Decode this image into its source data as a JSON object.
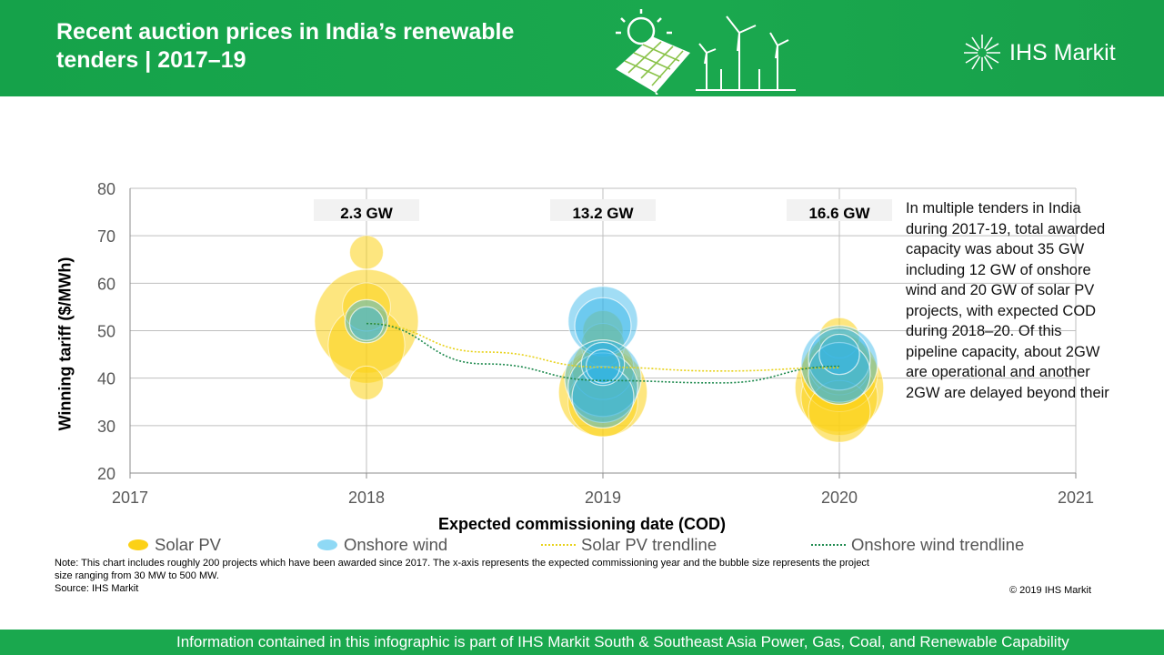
{
  "header": {
    "title_line1": "Recent auction prices in India’s renewable",
    "title_line2": "tenders | 2017–19",
    "brand": "IHS Markit",
    "colors": {
      "green": "#1aa84e",
      "white": "#ffffff"
    }
  },
  "chart_data": {
    "type": "scatter",
    "subtype": "bubble",
    "title": "",
    "xlabel": "Expected commissioning date (COD)",
    "ylabel": "Winning tariff ($/MWh)",
    "xlim": [
      2017,
      2021
    ],
    "ylim": [
      20,
      80
    ],
    "x_ticks": [
      "2017",
      "2018",
      "2019",
      "2020",
      "2021"
    ],
    "y_ticks": [
      "20",
      "30",
      "40",
      "50",
      "60",
      "70",
      "80"
    ],
    "grid": true,
    "capacity_labels": [
      {
        "x": 2018,
        "text": "2.3 GW"
      },
      {
        "x": 2019,
        "text": "13.2 GW"
      },
      {
        "x": 2020,
        "text": "16.6 GW"
      }
    ],
    "series": [
      {
        "name": "Solar PV",
        "color": "#fcd116",
        "points": [
          {
            "x": 2018,
            "y": 52,
            "size_mw": 500
          },
          {
            "x": 2018,
            "y": 47,
            "size_mw": 250
          },
          {
            "x": 2018,
            "y": 66.5,
            "size_mw": 30
          },
          {
            "x": 2018,
            "y": 39,
            "size_mw": 30
          },
          {
            "x": 2018,
            "y": 55,
            "size_mw": 80
          },
          {
            "x": 2019,
            "y": 37,
            "size_mw": 350
          },
          {
            "x": 2019,
            "y": 39,
            "size_mw": 200
          },
          {
            "x": 2019,
            "y": 35,
            "size_mw": 200
          },
          {
            "x": 2019,
            "y": 42,
            "size_mw": 150
          },
          {
            "x": 2019,
            "y": 50,
            "size_mw": 50
          },
          {
            "x": 2019,
            "y": 47,
            "size_mw": 60
          },
          {
            "x": 2020,
            "y": 38,
            "size_mw": 350
          },
          {
            "x": 2020,
            "y": 36,
            "size_mw": 250
          },
          {
            "x": 2020,
            "y": 41,
            "size_mw": 250
          },
          {
            "x": 2020,
            "y": 43,
            "size_mw": 150
          },
          {
            "x": 2020,
            "y": 48.5,
            "size_mw": 50
          },
          {
            "x": 2020,
            "y": 33,
            "size_mw": 150
          }
        ]
      },
      {
        "name": "Onshore wind",
        "color": "#2fb4e9",
        "points": [
          {
            "x": 2018,
            "y": 52,
            "size_mw": 60
          },
          {
            "x": 2018,
            "y": 51.5,
            "size_mw": 30
          },
          {
            "x": 2019,
            "y": 52,
            "size_mw": 200
          },
          {
            "x": 2019,
            "y": 51,
            "size_mw": 120
          },
          {
            "x": 2019,
            "y": 40,
            "size_mw": 250
          },
          {
            "x": 2019,
            "y": 38,
            "size_mw": 200
          },
          {
            "x": 2019,
            "y": 36,
            "size_mw": 150
          },
          {
            "x": 2019,
            "y": 43,
            "size_mw": 60
          },
          {
            "x": 2019,
            "y": 42.5,
            "size_mw": 30
          },
          {
            "x": 2020,
            "y": 43,
            "size_mw": 250
          },
          {
            "x": 2020,
            "y": 44,
            "size_mw": 150
          },
          {
            "x": 2020,
            "y": 41,
            "size_mw": 150
          },
          {
            "x": 2020,
            "y": 45,
            "size_mw": 50
          }
        ]
      },
      {
        "name": "Solar PV trendline",
        "color": "#e8d21a",
        "style": "dotted",
        "line": [
          [
            2018,
            51.5
          ],
          [
            2018.5,
            45.5
          ],
          [
            2019,
            42.3
          ],
          [
            2019.5,
            41.5
          ],
          [
            2020,
            42.2
          ]
        ]
      },
      {
        "name": "Onshore wind trendline",
        "color": "#1e8a4e",
        "style": "dotted",
        "line": [
          [
            2018,
            51.5
          ],
          [
            2018.5,
            43
          ],
          [
            2019,
            39.5
          ],
          [
            2019.5,
            39
          ],
          [
            2020,
            42.5
          ]
        ]
      }
    ]
  },
  "sidebar_text": "In multiple tenders in India during 2017-19, total awarded capacity was about 35 GW including 12 GW of onshore wind and 20 GW of solar PV projects, with expected COD during 2018–20. Of this pipeline capacity, about 2GW are operational and another 2GW are delayed beyond their",
  "note": "Note: This chart includes roughly 200 projects which have  been awarded since 2017. The x-axis represents the expected commissioning year and the bubble size represents the project size ranging from 30 MW to 500 MW.",
  "source": "Source: IHS Markit",
  "copyright": "© 2019 IHS Markit",
  "footer": "Information contained in this infographic is part of IHS Markit South & Southeast Asia Power, Gas, Coal, and Renewable Capability"
}
